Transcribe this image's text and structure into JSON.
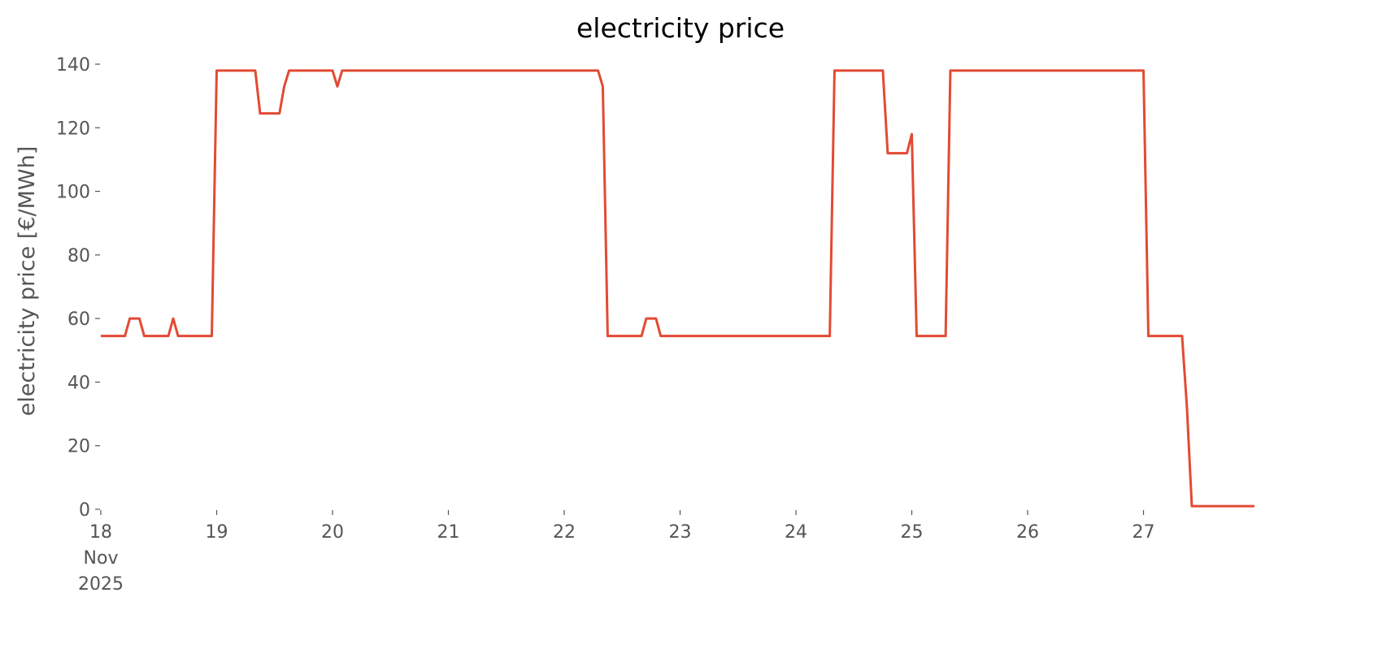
{
  "chart_data": {
    "type": "line",
    "title": "electricity price",
    "ylabel": "electricity price [€/MWh]",
    "x": [
      18.0,
      18.208,
      18.25,
      18.333,
      18.375,
      18.583,
      18.625,
      18.667,
      18.958,
      19.0,
      19.333,
      19.375,
      19.542,
      19.583,
      19.625,
      20.0,
      20.042,
      20.083,
      22.292,
      22.333,
      22.375,
      22.667,
      22.708,
      22.792,
      22.833,
      24.292,
      24.333,
      24.75,
      24.792,
      24.958,
      25.0,
      25.042,
      25.292,
      25.333,
      27.0,
      27.042,
      27.333,
      27.375,
      27.417,
      27.958
    ],
    "values": [
      54.5,
      54.5,
      60,
      60,
      54.5,
      54.5,
      60,
      54.5,
      54.5,
      138,
      138,
      124.5,
      124.5,
      133,
      138,
      138,
      133,
      138,
      138,
      133,
      54.5,
      54.5,
      60,
      60,
      54.5,
      54.5,
      138,
      138,
      112,
      112,
      118,
      54.5,
      54.5,
      138,
      138,
      54.5,
      54.5,
      32,
      1,
      1
    ],
    "color": "#e24a33",
    "xlim": [
      18,
      28
    ],
    "xticks": [
      {
        "value": 18,
        "label": "18\nNov\n2025"
      },
      19,
      20,
      21,
      22,
      23,
      24,
      25,
      26,
      27
    ],
    "ylim": [
      0,
      140
    ],
    "yticks": [
      0,
      20,
      40,
      60,
      80,
      100,
      120,
      140
    ],
    "grid": false
  }
}
